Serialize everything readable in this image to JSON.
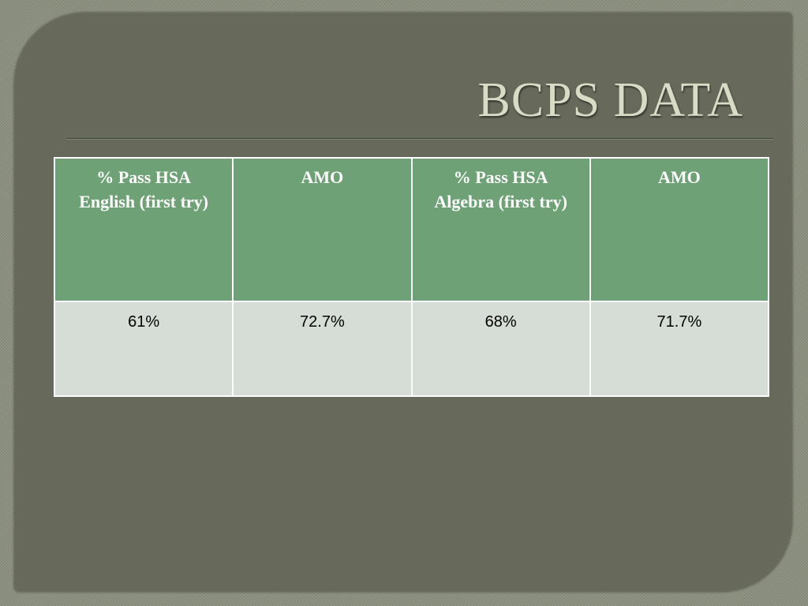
{
  "slide": {
    "title": "BCPS DATA"
  },
  "table": {
    "headers": [
      "% Pass HSA English (first try)",
      "AMO",
      "% Pass HSA Algebra (first try)",
      "AMO"
    ],
    "rows": [
      [
        "61%",
        "72.7%",
        "68%",
        "71.7%"
      ]
    ]
  },
  "colors": {
    "slide_background": "#676a5b",
    "title_text": "#d9dcc4",
    "header_fill": "#6fa176",
    "body_fill": "#d5ddd6"
  }
}
